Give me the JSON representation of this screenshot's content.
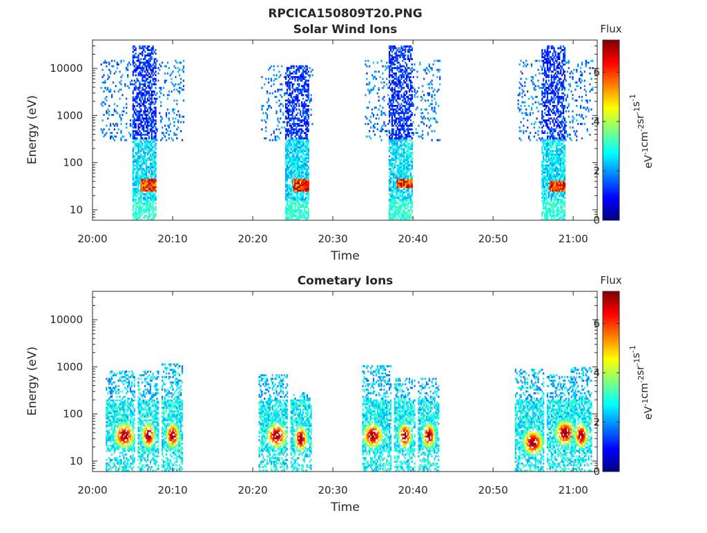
{
  "figure_title": "RPCICA150809T20.PNG",
  "chart_data": [
    {
      "type": "heatmap",
      "title": "Solar Wind Ions",
      "xlabel": "Time",
      "ylabel": "Energy (eV)",
      "xlim": [
        "20:00",
        "21:03"
      ],
      "ylim": [
        6,
        40000
      ],
      "y_scale": "log",
      "x_ticks": [
        "20:00",
        "20:10",
        "20:20",
        "20:30",
        "20:40",
        "20:50",
        "21:00"
      ],
      "y_ticks": [
        "10",
        "100",
        "1000",
        "10000"
      ],
      "colorbar": {
        "title": "Flux",
        "label": "eV-1cm-2sr-1s-1",
        "label_parts": [
          {
            "text": "eV",
            "sup": "-1"
          },
          {
            "text": "cm",
            "sup": "-2"
          },
          {
            "text": "sr",
            "sup": "-1"
          },
          {
            "text": "s",
            "sup": "-1"
          }
        ],
        "range": [
          0,
          7.3
        ],
        "ticks": [
          "0",
          "2",
          "4",
          "6"
        ],
        "colormap": "jet"
      },
      "bursts": [
        {
          "start": "20:01",
          "core_start": "20:05",
          "core_end": "20:08",
          "end": "20:11",
          "hot_start": "20:06",
          "hot_end": "20:08",
          "hot_energy_range": [
            25,
            45
          ],
          "max_energy": 30000
        },
        {
          "start": "20:21",
          "core_start": "20:24",
          "core_end": "20:27",
          "end": "20:27",
          "hot_start": "20:25",
          "hot_end": "20:27",
          "hot_energy_range": [
            25,
            45
          ],
          "max_energy": 12000
        },
        {
          "start": "20:34",
          "core_start": "20:37",
          "core_end": "20:40",
          "end": "20:43",
          "hot_start": "20:38",
          "hot_end": "20:40",
          "hot_energy_range": [
            30,
            45
          ],
          "max_energy": 32000
        },
        {
          "start": "20:53",
          "core_start": "20:56",
          "core_end": "20:59",
          "end": "21:02",
          "hot_start": "20:57",
          "hot_end": "20:59",
          "hot_energy_range": [
            25,
            40
          ],
          "max_energy": 32000
        }
      ]
    },
    {
      "type": "heatmap",
      "title": "Cometary Ions",
      "xlabel": "Time",
      "ylabel": "Energy (eV)",
      "xlim": [
        "20:00",
        "21:03"
      ],
      "ylim": [
        6,
        40000
      ],
      "y_scale": "log",
      "x_ticks": [
        "20:00",
        "20:10",
        "20:20",
        "20:30",
        "20:40",
        "20:50",
        "21:00"
      ],
      "y_ticks": [
        "10",
        "100",
        "1000",
        "10000"
      ],
      "colorbar": {
        "title": "Flux",
        "label": "eV-1cm-2sr-1s-1",
        "label_parts": [
          {
            "text": "eV",
            "sup": "-1"
          },
          {
            "text": "cm",
            "sup": "-2"
          },
          {
            "text": "sr",
            "sup": "-1"
          },
          {
            "text": "s",
            "sup": "-1"
          }
        ],
        "range": [
          0,
          7.3
        ],
        "ticks": [
          "0",
          "2",
          "4",
          "6"
        ],
        "colormap": "jet"
      },
      "bursts": [
        {
          "start": "20:02",
          "center": "20:04",
          "end": "20:05",
          "peak_energy": 35,
          "max_energy": 800
        },
        {
          "start": "20:06",
          "center": "20:07",
          "end": "20:08",
          "peak_energy": 35,
          "max_energy": 800
        },
        {
          "start": "20:09",
          "center": "20:10",
          "end": "20:11",
          "peak_energy": 35,
          "max_energy": 1200
        },
        {
          "start": "20:21",
          "center": "20:23",
          "end": "20:24",
          "peak_energy": 35,
          "max_energy": 700
        },
        {
          "start": "20:25",
          "center": "20:26",
          "end": "20:27",
          "peak_energy": 30,
          "max_energy": 300
        },
        {
          "start": "20:34",
          "center": "20:35",
          "end": "20:37",
          "peak_energy": 35,
          "max_energy": 1100
        },
        {
          "start": "20:38",
          "center": "20:39",
          "end": "20:40",
          "peak_energy": 35,
          "max_energy": 600
        },
        {
          "start": "20:41",
          "center": "20:42",
          "end": "20:43",
          "peak_energy": 35,
          "max_energy": 600
        },
        {
          "start": "20:53",
          "center": "20:55",
          "end": "20:56",
          "peak_energy": 25,
          "max_energy": 900
        },
        {
          "start": "20:57",
          "center": "20:59",
          "end": "21:00",
          "peak_energy": 40,
          "max_energy": 700
        },
        {
          "start": "21:00",
          "center": "21:01",
          "end": "21:02",
          "peak_energy": 35,
          "max_energy": 1000
        }
      ]
    }
  ]
}
